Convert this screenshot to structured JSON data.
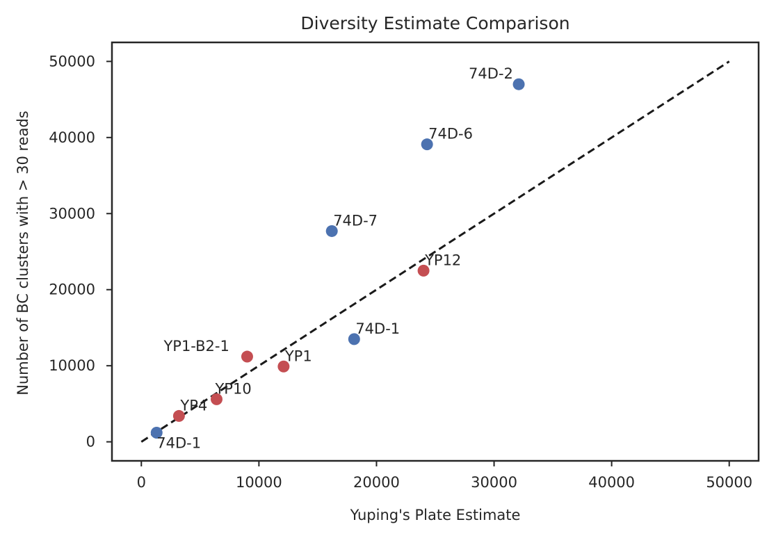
{
  "chart_data": {
    "type": "scatter",
    "title": "Diversity Estimate Comparison",
    "xlabel": "Yuping's Plate Estimate",
    "ylabel": "Number of BC clusters with > 30 reads",
    "xlim": [
      -2500,
      52500
    ],
    "ylim": [
      -2500,
      52500
    ],
    "xticks": [
      0,
      10000,
      20000,
      30000,
      40000,
      50000
    ],
    "yticks": [
      0,
      10000,
      20000,
      30000,
      40000,
      50000
    ],
    "grid": false,
    "legend": "none",
    "reference_line": {
      "style": "dashed",
      "color": "#1a1a1a",
      "x": [
        0,
        50000
      ],
      "y": [
        0,
        50000
      ]
    },
    "series": [
      {
        "color": "#4c72b0",
        "points": [
          {
            "label": "74D-2",
            "x": 32100,
            "y": 47000
          },
          {
            "label": "74D-6",
            "x": 24300,
            "y": 39100
          },
          {
            "label": "74D-7",
            "x": 16200,
            "y": 27700
          },
          {
            "label": "74D-1",
            "x": 18100,
            "y": 13500
          },
          {
            "label": "74D-1",
            "x": 1300,
            "y": 1200
          }
        ]
      },
      {
        "color": "#c44e52",
        "points": [
          {
            "label": "YP12",
            "x": 24000,
            "y": 22500
          },
          {
            "label": "YP1-B2-1",
            "x": 9000,
            "y": 11200
          },
          {
            "label": "YP1",
            "x": 12100,
            "y": 9900
          },
          {
            "label": "YP10",
            "x": 6400,
            "y": 5600
          },
          {
            "label": "YP4",
            "x": 3200,
            "y": 3400
          }
        ]
      }
    ]
  }
}
